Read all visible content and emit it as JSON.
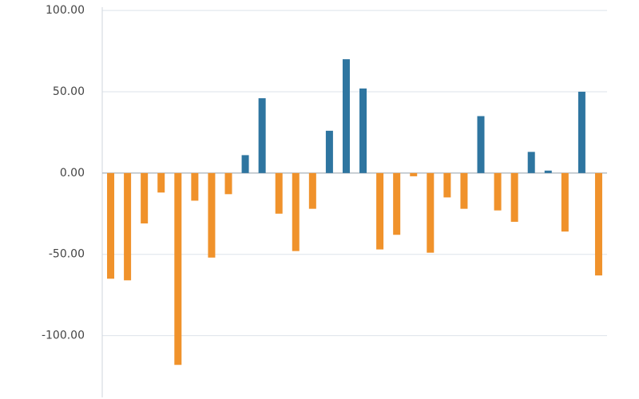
{
  "chart_data": {
    "type": "bar",
    "categories": [
      null,
      null,
      null,
      null,
      null,
      null,
      null,
      null,
      null,
      null,
      null,
      null,
      null,
      null,
      null,
      null,
      null,
      null,
      null,
      null,
      null,
      null,
      null,
      null,
      null,
      null,
      null,
      null,
      null,
      null
    ],
    "values": [
      -65,
      -66,
      -31,
      -12,
      -118,
      -17,
      -52,
      -13,
      11,
      46,
      -25,
      -48,
      -22,
      26,
      70,
      52,
      -47,
      -38,
      -2,
      -49,
      -15,
      -22,
      35,
      -23,
      -30,
      13,
      1.5,
      -36,
      50,
      -63
    ],
    "positive_color": "#2e75a0",
    "negative_color": "#f0922b",
    "ylim": [
      -138,
      102
    ],
    "yticks": [
      {
        "value": -100,
        "label": "-100.00"
      },
      {
        "value": -50,
        "label": "-50.00"
      },
      {
        "value": 0,
        "label": "0.00"
      },
      {
        "value": 50,
        "label": "50.00"
      },
      {
        "value": 100,
        "label": "100.00"
      }
    ],
    "grid": true
  }
}
